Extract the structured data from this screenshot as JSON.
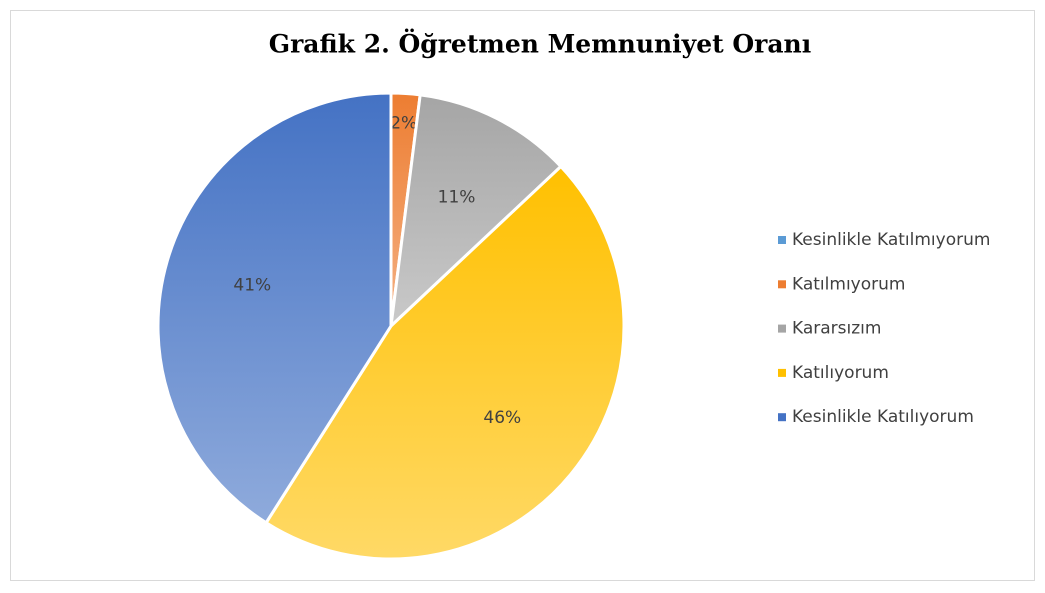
{
  "chart_data": {
    "type": "pie",
    "title": "Grafik 2. Öğretmen Memnuniyet Oranı",
    "categories": [
      "Kesinlikle Katılmıyorum",
      "Katılmıyorum",
      "Kararsızım",
      "Katılıyorum",
      "Kesinlikle Katılıyorum"
    ],
    "values": [
      0,
      2,
      11,
      46,
      41
    ],
    "value_labels": [
      null,
      "2%",
      "11%",
      "46%",
      "41%"
    ],
    "colors": [
      "#5b9bd5",
      "#ed7d31",
      "#a5a5a5",
      "#ffc000",
      "#4472c4"
    ],
    "legend": "right"
  }
}
